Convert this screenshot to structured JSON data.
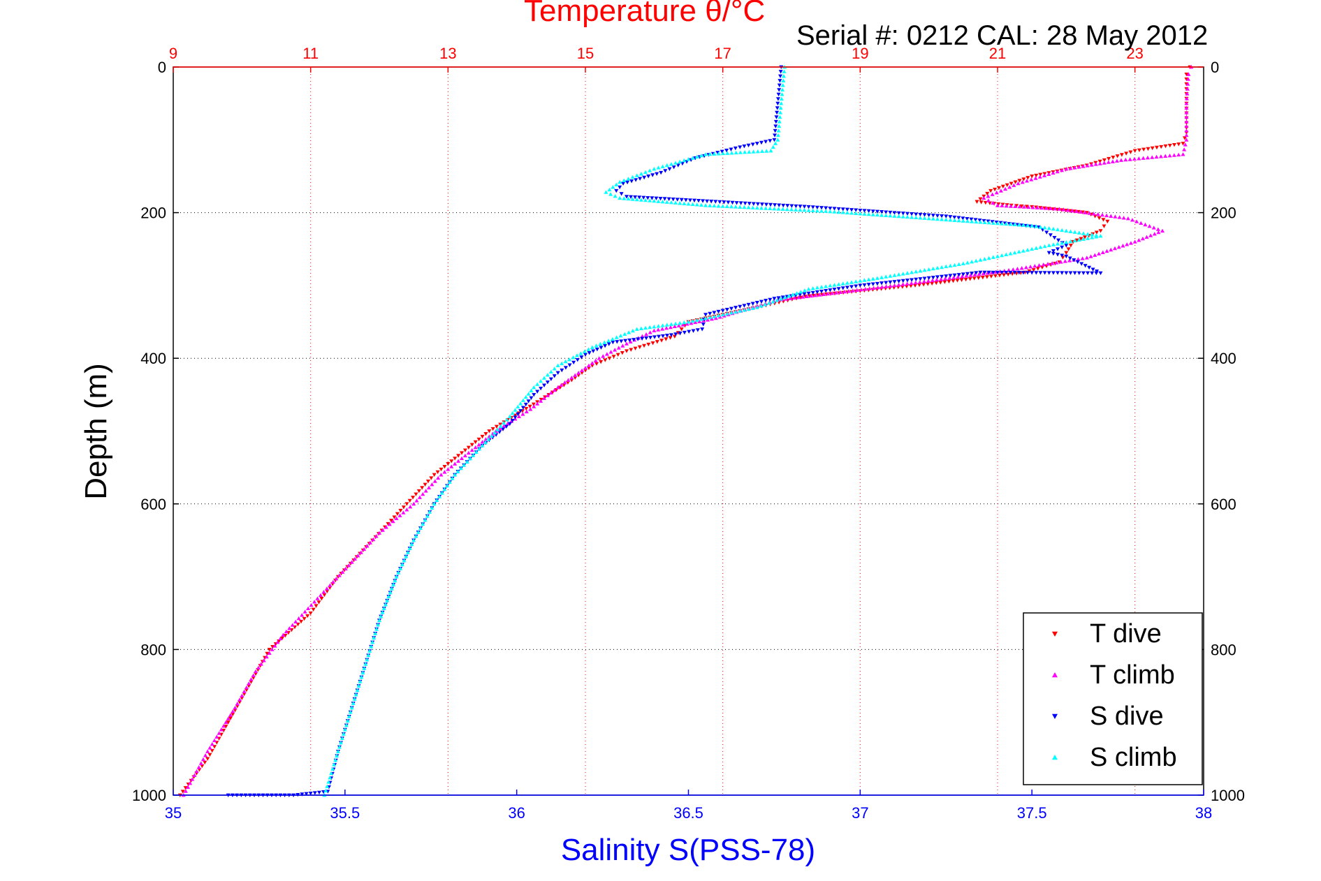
{
  "chart_data": {
    "type": "scatter",
    "title": "Temperature θ/°C",
    "annotation": "Serial #: 0212  CAL: 28 May 2012",
    "xlabel": "Salinity S(PSS-78)",
    "ylabel": "Depth (m)",
    "x_bottom": {
      "label": "Salinity S(PSS-78)",
      "range": [
        35,
        38
      ],
      "ticks": [
        35,
        35.5,
        36,
        36.5,
        37,
        37.5,
        38
      ],
      "tick_labels": [
        "35",
        "35.5",
        "36",
        "36.5",
        "37",
        "37.5",
        "38"
      ]
    },
    "x_top": {
      "label": "Temperature θ/°C",
      "range": [
        9,
        24
      ],
      "ticks": [
        9,
        11,
        13,
        15,
        17,
        19,
        21,
        23
      ],
      "tick_labels": [
        "9",
        "11",
        "13",
        "15",
        "17",
        "19",
        "21",
        "23"
      ]
    },
    "y": {
      "label": "Depth (m)",
      "range": [
        0,
        1000
      ],
      "reversed": true,
      "ticks": [
        0,
        200,
        400,
        600,
        800,
        1000
      ],
      "tick_labels": [
        "0",
        "200",
        "400",
        "600",
        "800",
        "1000"
      ]
    },
    "grid": true,
    "legend_position": "bottom-right",
    "series": [
      {
        "name": "T dive",
        "axis": "temperature",
        "color": "#ff0000",
        "marker": "triangle-down",
        "points": [
          [
            23.8,
            0
          ],
          [
            23.75,
            10
          ],
          [
            23.75,
            50
          ],
          [
            23.75,
            90
          ],
          [
            23.7,
            105
          ],
          [
            23.0,
            115
          ],
          [
            22.3,
            135
          ],
          [
            21.5,
            150
          ],
          [
            20.9,
            170
          ],
          [
            20.7,
            185
          ],
          [
            21.2,
            190
          ],
          [
            21.5,
            192
          ],
          [
            22.3,
            200
          ],
          [
            22.6,
            212
          ],
          [
            22.5,
            225
          ],
          [
            22.1,
            240
          ],
          [
            22.0,
            255
          ],
          [
            21.9,
            268
          ],
          [
            21.4,
            282
          ],
          [
            19.8,
            300
          ],
          [
            18.2,
            315
          ],
          [
            17.5,
            330
          ],
          [
            16.5,
            350
          ],
          [
            16.3,
            370
          ],
          [
            15.6,
            390
          ],
          [
            15.1,
            410
          ],
          [
            14.8,
            430
          ],
          [
            14.3,
            460
          ],
          [
            13.6,
            500
          ],
          [
            13.2,
            530
          ],
          [
            12.8,
            560
          ],
          [
            12.4,
            600
          ],
          [
            11.9,
            650
          ],
          [
            11.4,
            700
          ],
          [
            11.0,
            750
          ],
          [
            10.4,
            800
          ],
          [
            10.1,
            850
          ],
          [
            9.8,
            900
          ],
          [
            9.5,
            950
          ],
          [
            9.1,
            1000
          ]
        ]
      },
      {
        "name": "T climb",
        "axis": "temperature",
        "color": "#ff00ff",
        "marker": "triangle-up",
        "points": [
          [
            23.82,
            0
          ],
          [
            23.78,
            10
          ],
          [
            23.75,
            50
          ],
          [
            23.75,
            100
          ],
          [
            23.7,
            120
          ],
          [
            22.8,
            128
          ],
          [
            22.0,
            140
          ],
          [
            21.3,
            160
          ],
          [
            20.8,
            180
          ],
          [
            21.0,
            190
          ],
          [
            21.9,
            195
          ],
          [
            22.9,
            208
          ],
          [
            23.4,
            225
          ],
          [
            23.0,
            240
          ],
          [
            22.3,
            262
          ],
          [
            21.1,
            280
          ],
          [
            19.5,
            300
          ],
          [
            17.8,
            320
          ],
          [
            16.9,
            345
          ],
          [
            16.0,
            362
          ],
          [
            15.6,
            380
          ],
          [
            15.2,
            400
          ],
          [
            14.6,
            440
          ],
          [
            14.2,
            470
          ],
          [
            13.7,
            500
          ],
          [
            13.3,
            530
          ],
          [
            12.9,
            560
          ],
          [
            12.5,
            600
          ],
          [
            12.0,
            640
          ],
          [
            11.6,
            680
          ],
          [
            11.1,
            730
          ],
          [
            10.6,
            780
          ],
          [
            10.2,
            830
          ],
          [
            9.9,
            880
          ],
          [
            9.5,
            940
          ],
          [
            9.15,
            1000
          ]
        ]
      },
      {
        "name": "S dive",
        "axis": "salinity",
        "color": "#0000ff",
        "marker": "triangle-down",
        "points": [
          [
            36.77,
            0
          ],
          [
            36.76,
            50
          ],
          [
            36.75,
            100
          ],
          [
            36.65,
            110
          ],
          [
            36.52,
            125
          ],
          [
            36.42,
            145
          ],
          [
            36.31,
            160
          ],
          [
            36.29,
            170
          ],
          [
            36.32,
            178
          ],
          [
            36.85,
            192
          ],
          [
            37.25,
            205
          ],
          [
            37.52,
            220
          ],
          [
            37.6,
            245
          ],
          [
            37.55,
            255
          ],
          [
            37.6,
            260
          ],
          [
            37.7,
            283
          ],
          [
            37.35,
            282
          ],
          [
            37.0,
            300
          ],
          [
            36.75,
            318
          ],
          [
            36.55,
            340
          ],
          [
            36.54,
            360
          ],
          [
            36.45,
            368
          ],
          [
            36.28,
            378
          ],
          [
            36.2,
            395
          ],
          [
            36.12,
            420
          ],
          [
            36.05,
            450
          ],
          [
            35.98,
            490
          ],
          [
            35.9,
            520
          ],
          [
            35.82,
            560
          ],
          [
            35.76,
            600
          ],
          [
            35.7,
            650
          ],
          [
            35.65,
            700
          ],
          [
            35.6,
            760
          ],
          [
            35.56,
            820
          ],
          [
            35.52,
            880
          ],
          [
            35.48,
            940
          ],
          [
            35.45,
            995
          ],
          [
            35.35,
            1000
          ],
          [
            35.16,
            1000
          ]
        ]
      },
      {
        "name": "S climb",
        "axis": "salinity",
        "color": "#00ffff",
        "marker": "triangle-up",
        "points": [
          [
            36.78,
            0
          ],
          [
            36.77,
            50
          ],
          [
            36.76,
            100
          ],
          [
            36.74,
            115
          ],
          [
            36.55,
            120
          ],
          [
            36.4,
            140
          ],
          [
            36.3,
            158
          ],
          [
            36.26,
            172
          ],
          [
            36.3,
            180
          ],
          [
            36.55,
            190
          ],
          [
            36.9,
            198
          ],
          [
            37.2,
            208
          ],
          [
            37.5,
            218
          ],
          [
            37.7,
            232
          ],
          [
            37.55,
            245
          ],
          [
            37.3,
            270
          ],
          [
            37.05,
            290
          ],
          [
            36.85,
            305
          ],
          [
            36.7,
            330
          ],
          [
            36.5,
            350
          ],
          [
            36.35,
            360
          ],
          [
            36.22,
            385
          ],
          [
            36.12,
            410
          ],
          [
            36.05,
            440
          ],
          [
            35.98,
            480
          ],
          [
            35.9,
            520
          ],
          [
            35.82,
            560
          ],
          [
            35.76,
            600
          ],
          [
            35.7,
            650
          ],
          [
            35.65,
            700
          ],
          [
            35.6,
            760
          ],
          [
            35.56,
            820
          ],
          [
            35.52,
            880
          ],
          [
            35.48,
            940
          ],
          [
            35.44,
            1000
          ]
        ]
      }
    ]
  }
}
